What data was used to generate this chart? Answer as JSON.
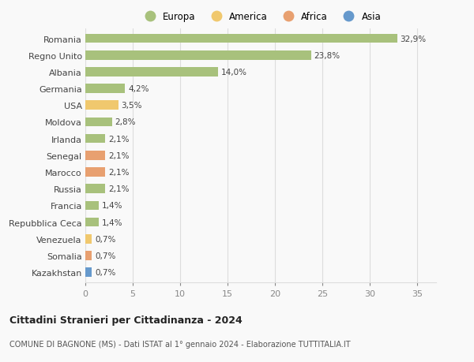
{
  "countries": [
    "Romania",
    "Regno Unito",
    "Albania",
    "Germania",
    "USA",
    "Moldova",
    "Irlanda",
    "Senegal",
    "Marocco",
    "Russia",
    "Francia",
    "Repubblica Ceca",
    "Venezuela",
    "Somalia",
    "Kazakhstan"
  ],
  "values": [
    32.9,
    23.8,
    14.0,
    4.2,
    3.5,
    2.8,
    2.1,
    2.1,
    2.1,
    2.1,
    1.4,
    1.4,
    0.7,
    0.7,
    0.7
  ],
  "labels": [
    "32,9%",
    "23,8%",
    "14,0%",
    "4,2%",
    "3,5%",
    "2,8%",
    "2,1%",
    "2,1%",
    "2,1%",
    "2,1%",
    "1,4%",
    "1,4%",
    "0,7%",
    "0,7%",
    "0,7%"
  ],
  "continents": [
    "Europa",
    "Europa",
    "Europa",
    "Europa",
    "America",
    "Europa",
    "Europa",
    "Africa",
    "Africa",
    "Europa",
    "Europa",
    "Europa",
    "America",
    "Africa",
    "Asia"
  ],
  "continent_colors": {
    "Europa": "#a8c17c",
    "America": "#f0c86e",
    "Africa": "#e8a070",
    "Asia": "#6699cc"
  },
  "xlim": [
    0,
    37
  ],
  "title": "Cittadini Stranieri per Cittadinanza - 2024",
  "subtitle": "COMUNE DI BAGNONE (MS) - Dati ISTAT al 1° gennaio 2024 - Elaborazione TUTTITALIA.IT",
  "background_color": "#f9f9f9",
  "grid_color": "#dddddd",
  "bar_height": 0.55,
  "xticks": [
    0,
    5,
    10,
    15,
    20,
    25,
    30,
    35
  ]
}
